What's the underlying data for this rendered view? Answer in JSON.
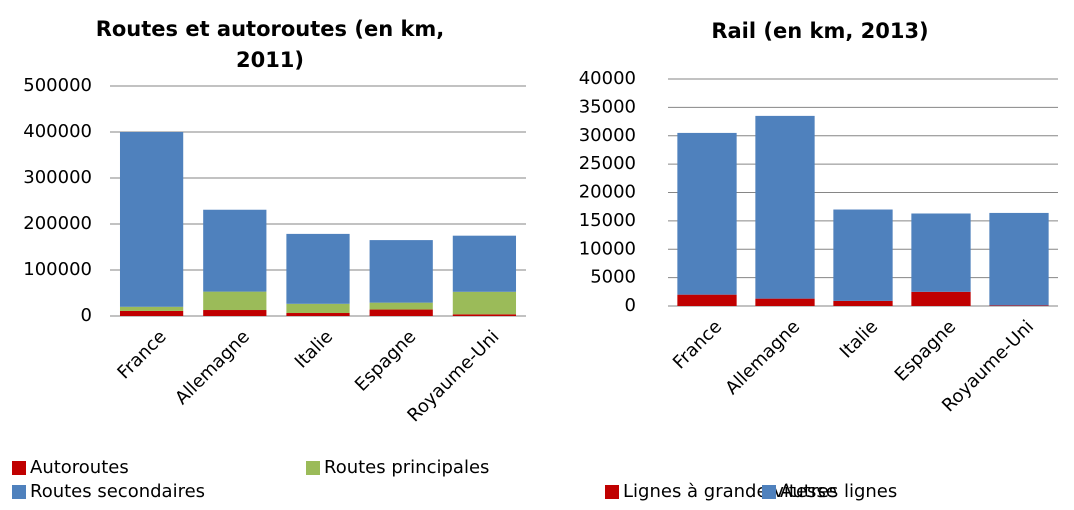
{
  "chart_data": [
    {
      "type": "bar",
      "stacked": true,
      "title": "Routes et autoroutes (en km, 2011)",
      "categories": [
        "France",
        "Allemagne",
        "Italie",
        "Espagne",
        "Royaume-Uni"
      ],
      "series": [
        {
          "name": "Autoroutes",
          "color": "#c00000",
          "values": [
            11000,
            13000,
            6500,
            14000,
            3600
          ]
        },
        {
          "name": "Routes principales",
          "color": "#9bbb59",
          "values": [
            9000,
            40000,
            20000,
            15000,
            49000
          ]
        },
        {
          "name": "Routes secondaires",
          "color": "#4f81bd",
          "values": [
            380000,
            178000,
            152000,
            136000,
            122000
          ]
        }
      ],
      "ylim": [
        0,
        500000
      ],
      "yticks": [
        0,
        100000,
        200000,
        300000,
        400000,
        500000
      ],
      "grid": true
    },
    {
      "type": "bar",
      "stacked": true,
      "title": "Rail (en km, 2013)",
      "categories": [
        "France",
        "Allemagne",
        "Italie",
        "Espagne",
        "Royaume-Uni"
      ],
      "series": [
        {
          "name": "Lignes à grande vitesse",
          "color": "#c00000",
          "values": [
            2000,
            1300,
            900,
            2500,
            100
          ]
        },
        {
          "name": "Autres lignes",
          "color": "#4f81bd",
          "values": [
            28500,
            32200,
            16100,
            13800,
            16300
          ]
        }
      ],
      "ylim": [
        0,
        40000
      ],
      "yticks": [
        0,
        5000,
        10000,
        15000,
        20000,
        25000,
        30000,
        35000,
        40000
      ],
      "grid": true
    }
  ]
}
